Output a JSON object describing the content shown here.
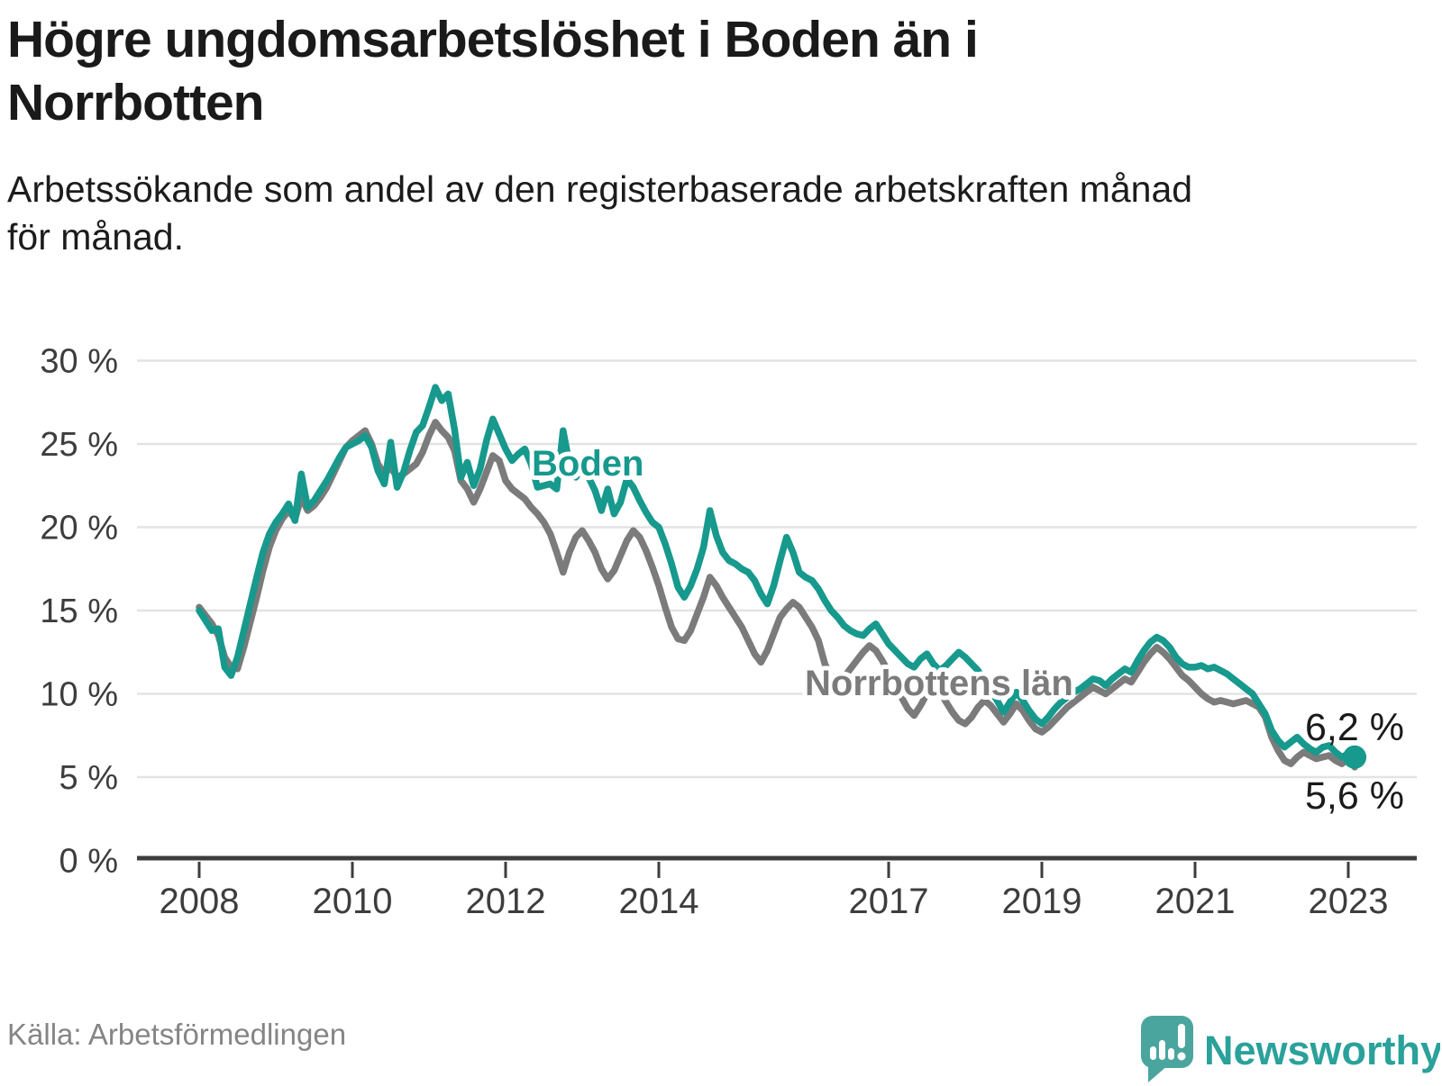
{
  "header": {
    "title_lines": [
      "Högre ungdomsarbetslöshet i Boden än i",
      "Norrbotten"
    ],
    "subtitle_lines": [
      "Arbetssökande som andel av den registerbaserade arbetskraften månad",
      "för månad."
    ]
  },
  "footer": {
    "source": "Källa: Arbetsförmedlingen",
    "brand": "Newsworthy"
  },
  "colors": {
    "boden": "#17998d",
    "norrbotten": "#7b7b7b",
    "grid": "#e3e3e3",
    "axis": "#3d3d3d",
    "end_label_text": "#1a1a1a",
    "logo_bubble": "#4aa59e",
    "logo_text": "#2aa19a"
  },
  "chart_data": {
    "type": "line",
    "title": "Högre ungdomsarbetslöshet i Boden än i Norrbotten",
    "subtitle": "Arbetssökande som andel av den registerbaserade arbetskraften månad för månad.",
    "source": "Källa: Arbetsförmedlingen",
    "frequency": "monthly",
    "x_start_year": 2008,
    "x_end": "2023-02",
    "x_ticks": [
      2008,
      2010,
      2012,
      2014,
      2017,
      2019,
      2021,
      2023
    ],
    "y_ticks": [
      0,
      5,
      10,
      15,
      20,
      25,
      30
    ],
    "y_tick_suffix": " %",
    "ylim": [
      0,
      30
    ],
    "grid": true,
    "legend_position": "inline",
    "series": [
      {
        "name": "Boden",
        "color": "#17998d",
        "end_label": "6,2 %",
        "end_value": 6.2,
        "end_dot": true,
        "values": [
          15.0,
          14.4,
          13.8,
          13.9,
          11.6,
          11.1,
          12.2,
          13.8,
          15.4,
          17.0,
          18.5,
          19.6,
          20.3,
          20.8,
          21.4,
          20.4,
          23.2,
          21.2,
          21.6,
          22.2,
          22.8,
          23.5,
          24.2,
          24.8,
          25.0,
          25.2,
          25.5,
          24.8,
          23.4,
          22.6,
          25.1,
          22.4,
          23.3,
          24.6,
          25.7,
          26.1,
          27.2,
          28.4,
          27.6,
          28.0,
          25.9,
          23.0,
          23.9,
          22.5,
          23.5,
          25.2,
          26.5,
          25.6,
          24.7,
          24.0,
          24.4,
          24.7,
          23.8,
          22.4,
          22.5,
          22.6,
          22.3,
          25.8,
          23.8,
          23.0,
          23.6,
          23.0,
          22.2,
          21.0,
          22.3,
          20.8,
          21.5,
          22.9,
          22.4,
          21.6,
          20.9,
          20.3,
          20.0,
          19.0,
          17.8,
          16.4,
          15.8,
          16.5,
          17.5,
          18.8,
          21.0,
          19.5,
          18.5,
          18.0,
          17.8,
          17.5,
          17.3,
          16.8,
          16.0,
          15.4,
          16.5,
          18.0,
          19.4,
          18.5,
          17.3,
          17.0,
          16.8,
          16.3,
          15.6,
          15.0,
          14.6,
          14.1,
          13.8,
          13.6,
          13.5,
          13.9,
          14.2,
          13.6,
          13.0,
          12.6,
          12.2,
          11.8,
          11.6,
          12.1,
          12.4,
          11.8,
          11.4,
          11.7,
          12.1,
          12.5,
          12.2,
          11.8,
          11.4,
          10.8,
          10.2,
          9.6,
          8.9,
          9.5,
          10.1,
          9.6,
          9.0,
          8.5,
          8.2,
          8.6,
          9.1,
          9.5,
          9.8,
          10.1,
          10.3,
          10.6,
          10.9,
          10.8,
          10.5,
          10.9,
          11.2,
          11.5,
          11.3,
          12.0,
          12.6,
          13.1,
          13.4,
          13.2,
          12.8,
          12.2,
          11.8,
          11.6,
          11.6,
          11.7,
          11.5,
          11.6,
          11.4,
          11.2,
          10.9,
          10.6,
          10.3,
          10.0,
          9.4,
          8.8,
          7.8,
          7.2,
          6.8,
          7.1,
          7.4,
          7.0,
          6.7,
          6.5,
          6.8,
          6.9,
          6.5,
          6.2,
          6.4,
          6.2
        ]
      },
      {
        "name": "Norrbottens län",
        "color": "#7b7b7b",
        "end_label": "5,6 %",
        "end_value": 5.6,
        "end_dot": false,
        "values": [
          15.2,
          14.7,
          14.2,
          13.5,
          12.2,
          11.6,
          11.5,
          12.8,
          14.3,
          15.8,
          17.4,
          18.8,
          19.8,
          20.5,
          21.0,
          20.5,
          21.8,
          21.0,
          21.3,
          21.8,
          22.4,
          23.2,
          24.0,
          24.8,
          25.2,
          25.5,
          25.8,
          25.0,
          23.8,
          23.2,
          23.6,
          23.0,
          23.2,
          23.5,
          23.8,
          24.5,
          25.5,
          26.3,
          25.8,
          25.4,
          24.6,
          22.8,
          22.3,
          21.5,
          22.3,
          23.3,
          24.3,
          24.0,
          22.8,
          22.3,
          22.0,
          21.7,
          21.2,
          20.8,
          20.3,
          19.6,
          18.5,
          17.3,
          18.5,
          19.4,
          19.8,
          19.2,
          18.5,
          17.5,
          16.9,
          17.4,
          18.3,
          19.2,
          19.8,
          19.4,
          18.6,
          17.6,
          16.5,
          15.2,
          14.0,
          13.3,
          13.2,
          13.8,
          14.8,
          15.8,
          17.0,
          16.5,
          15.8,
          15.2,
          14.6,
          14.0,
          13.2,
          12.4,
          11.9,
          12.6,
          13.6,
          14.6,
          15.1,
          15.5,
          15.2,
          14.6,
          14.0,
          13.2,
          11.8,
          11.0,
          10.7,
          11.0,
          11.5,
          12.0,
          12.5,
          12.9,
          12.6,
          12.0,
          11.3,
          10.6,
          9.8,
          9.1,
          8.7,
          9.3,
          10.0,
          10.5,
          10.2,
          9.5,
          8.9,
          8.4,
          8.2,
          8.6,
          9.2,
          9.6,
          9.3,
          8.8,
          8.3,
          8.8,
          9.4,
          9.0,
          8.4,
          7.9,
          7.7,
          8.0,
          8.4,
          8.8,
          9.2,
          9.5,
          9.8,
          10.1,
          10.4,
          10.2,
          10.0,
          10.3,
          10.6,
          10.9,
          10.7,
          11.3,
          11.9,
          12.4,
          12.8,
          12.5,
          12.1,
          11.6,
          11.1,
          10.8,
          10.4,
          10.0,
          9.7,
          9.5,
          9.6,
          9.5,
          9.4,
          9.5,
          9.6,
          9.4,
          9.2,
          8.6,
          7.4,
          6.6,
          6.0,
          5.8,
          6.2,
          6.5,
          6.3,
          6.1,
          6.2,
          6.3,
          6.0,
          5.8,
          6.1,
          5.6
        ]
      }
    ]
  }
}
